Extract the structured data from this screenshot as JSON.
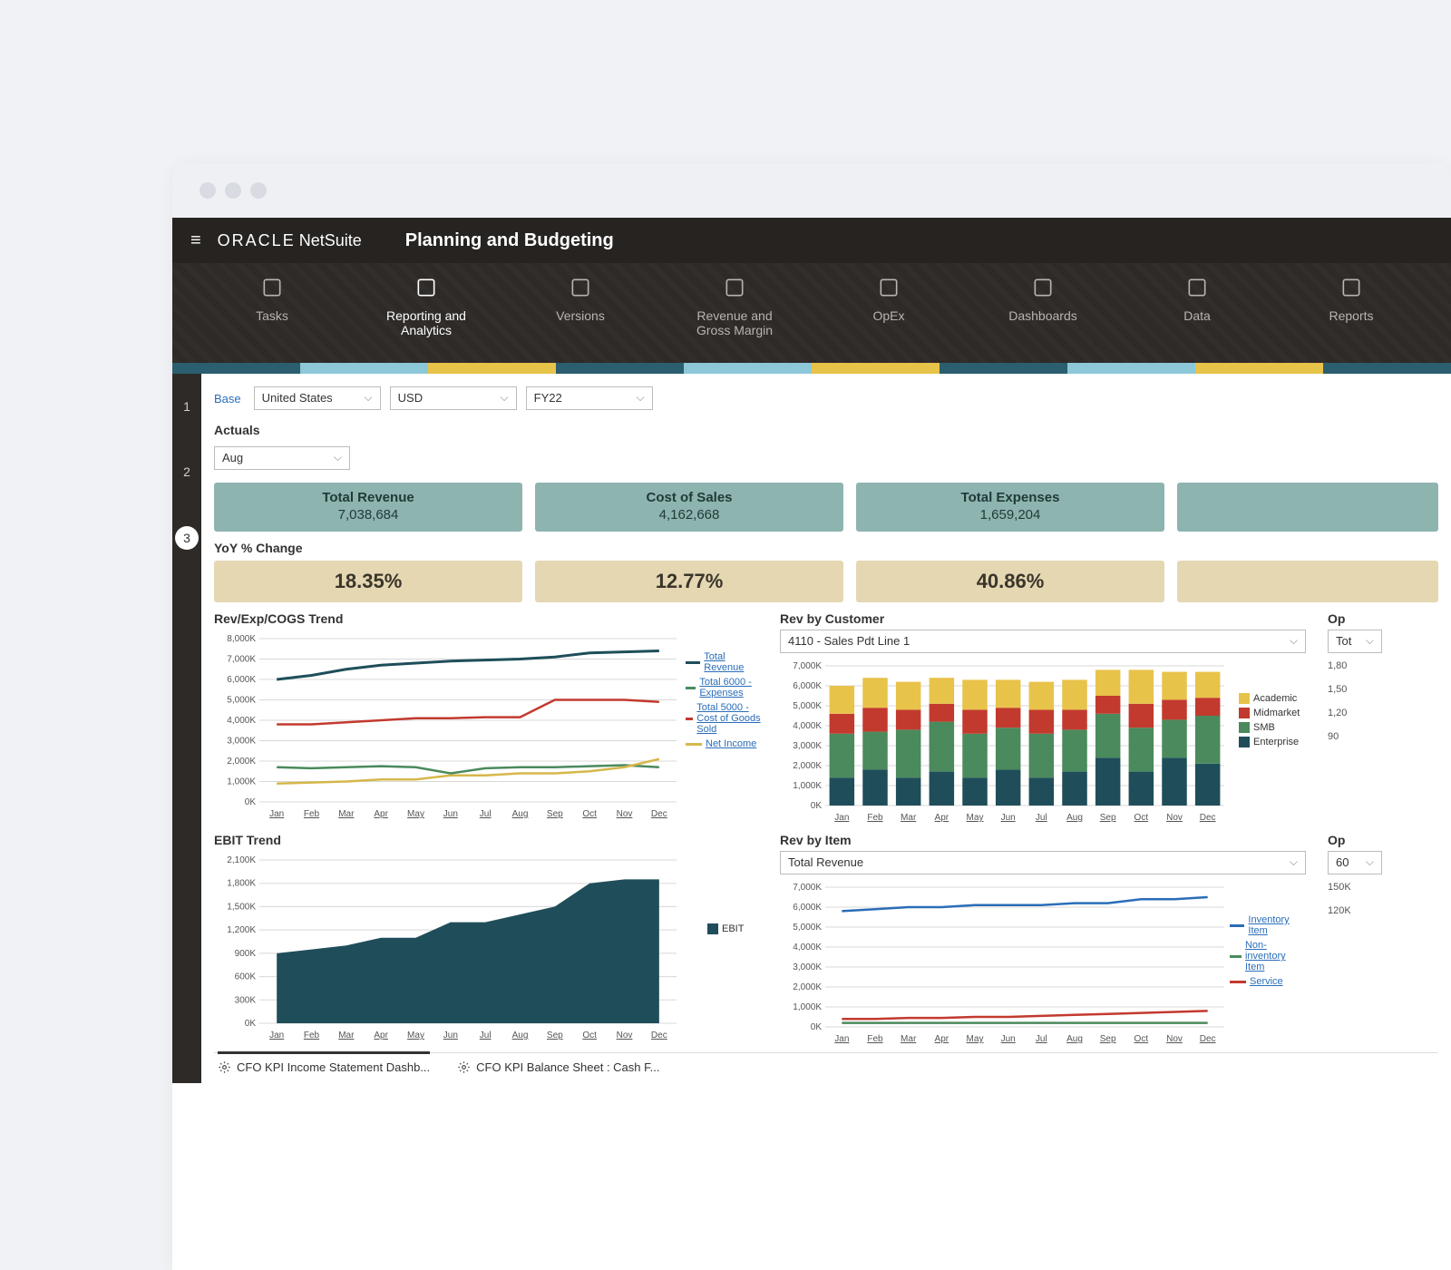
{
  "header": {
    "brand_main": "ORACLE",
    "brand_sub": "NetSuite",
    "page_title": "Planning and Budgeting"
  },
  "nav": [
    {
      "label": "Tasks"
    },
    {
      "label": "Reporting and Analytics"
    },
    {
      "label": "Versions"
    },
    {
      "label": "Revenue and Gross Margin"
    },
    {
      "label": "OpEx"
    },
    {
      "label": "Dashboards"
    },
    {
      "label": "Data"
    },
    {
      "label": "Reports"
    }
  ],
  "steps": [
    "1",
    "2",
    "3"
  ],
  "filters": {
    "base": "Base",
    "country": "United States",
    "currency": "USD",
    "fy": "FY22",
    "month": "Aug"
  },
  "actuals_label": "Actuals",
  "yoy_label": "YoY % Change",
  "metrics": [
    {
      "title": "Total Revenue",
      "value": "7,038,684"
    },
    {
      "title": "Cost of Sales",
      "value": "4,162,668"
    },
    {
      "title": "Total Expenses",
      "value": "1,659,204"
    }
  ],
  "yoy": [
    "18.35%",
    "12.77%",
    "40.86%"
  ],
  "months": [
    "Jan",
    "Feb",
    "Mar",
    "Apr",
    "May",
    "Jun",
    "Jul",
    "Aug",
    "Sep",
    "Oct",
    "Nov",
    "Dec"
  ],
  "trend_chart": {
    "title": "Rev/Exp/COGS Trend",
    "ymax": 8000,
    "ystep": 1000,
    "ysuffix": "K",
    "legend": [
      {
        "label": "Total Revenue",
        "color": "#1f4e5a"
      },
      {
        "label": "Total 6000 - Expenses",
        "color": "#4a8a5c"
      },
      {
        "label": "Total 5000 - Cost of Goods Sold",
        "color": "#c23a2e"
      },
      {
        "label": "Net Income",
        "color": "#d6b74a"
      }
    ],
    "series": {
      "revenue": [
        6000,
        6200,
        6500,
        6700,
        6800,
        6900,
        6950,
        7000,
        7100,
        7300,
        7350,
        7400
      ],
      "expenses": [
        1700,
        1650,
        1700,
        1750,
        1700,
        1400,
        1650,
        1700,
        1700,
        1750,
        1800,
        1700
      ],
      "cogs": [
        3800,
        3800,
        3900,
        4000,
        4100,
        4100,
        4150,
        4150,
        5000,
        5000,
        5000,
        4900
      ],
      "netincome": [
        900,
        950,
        1000,
        1100,
        1100,
        1300,
        1300,
        1400,
        1400,
        1500,
        1700,
        2100
      ]
    }
  },
  "rev_customer": {
    "title": "Rev by Customer",
    "selector": "4110 - Sales Pdt Line 1",
    "ymax": 7000,
    "ystep": 1000,
    "ysuffix": "K",
    "legend": [
      {
        "label": "Academic",
        "color": "#e8c34a"
      },
      {
        "label": "Midmarket",
        "color": "#c23a2e"
      },
      {
        "label": "SMB",
        "color": "#4a8a5c"
      },
      {
        "label": "Enterprise",
        "color": "#1f4e5a"
      }
    ],
    "stacks": [
      [
        1400,
        2200,
        1000,
        1400
      ],
      [
        1800,
        1900,
        1200,
        1500
      ],
      [
        1400,
        2400,
        1000,
        1400
      ],
      [
        1700,
        2500,
        900,
        1300
      ],
      [
        1400,
        2200,
        1200,
        1500
      ],
      [
        1800,
        2100,
        1000,
        1400
      ],
      [
        1400,
        2200,
        1200,
        1400
      ],
      [
        1700,
        2100,
        1000,
        1500
      ],
      [
        2400,
        2200,
        900,
        1300
      ],
      [
        1700,
        2200,
        1200,
        1700
      ],
      [
        2400,
        1900,
        1000,
        1400
      ],
      [
        2100,
        2400,
        900,
        1300
      ]
    ]
  },
  "ebit_chart": {
    "title": "EBIT Trend",
    "ymax": 2100,
    "ystep": 300,
    "ysuffix": "K",
    "legend": [
      {
        "label": "EBIT",
        "color": "#1f4e5a"
      }
    ],
    "values": [
      900,
      950,
      1000,
      1100,
      1100,
      1300,
      1300,
      1400,
      1500,
      1800,
      1850,
      1850
    ]
  },
  "rev_item": {
    "title": "Rev by Item",
    "selector": "Total Revenue",
    "ymax": 7000,
    "ystep": 1000,
    "ysuffix": "K",
    "legend": [
      {
        "label": "Inventory Item",
        "color": "#2a6db8"
      },
      {
        "label": "Non-inventory Item",
        "color": "#4a8a5c"
      },
      {
        "label": "Service",
        "color": "#c23a2e"
      }
    ],
    "series": {
      "inventory": [
        5800,
        5900,
        6000,
        6000,
        6100,
        6100,
        6100,
        6200,
        6200,
        6400,
        6400,
        6500
      ],
      "noninv": [
        200,
        200,
        200,
        200,
        200,
        200,
        200,
        200,
        200,
        200,
        200,
        200
      ],
      "service": [
        400,
        400,
        450,
        450,
        500,
        500,
        550,
        600,
        650,
        700,
        750,
        800
      ]
    }
  },
  "partial_right": {
    "title_top": "Op",
    "sel_top": "Tot",
    "y_top": "1,80",
    "y_top2": "1,50",
    "y_top3": "1,20",
    "y_top4": "90",
    "title_bot": "Op",
    "sel_bot": "60",
    "y_bot": "150K",
    "y_bot2": "120K"
  },
  "bottom_tabs": [
    "CFO KPI Income Statement Dashb...",
    "CFO KPI Balance Sheet : Cash F..."
  ],
  "colors": {
    "teal": "#8eb4b0",
    "beige": "#e4d7b2",
    "grid": "#d8d8d8",
    "axis_text": "#555"
  }
}
